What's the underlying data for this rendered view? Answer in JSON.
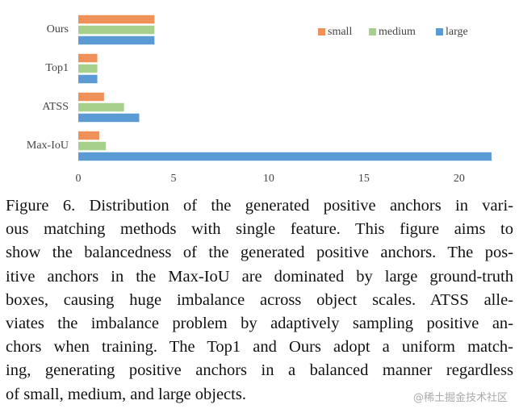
{
  "chart_data": {
    "type": "hbar",
    "categories": [
      "Ours",
      "Top1",
      "ATSS",
      "Max-IoU"
    ],
    "series": [
      {
        "name": "small",
        "color": "#f0915a",
        "values": [
          4,
          1,
          1.35,
          1.1
        ]
      },
      {
        "name": "medium",
        "color": "#a8d08d",
        "values": [
          4,
          1,
          2.4,
          1.45
        ]
      },
      {
        "name": "large",
        "color": "#5b9bd5",
        "values": [
          4,
          1,
          3.2,
          21.7
        ]
      }
    ],
    "xlim": [
      0,
      22
    ],
    "xticks": [
      0,
      5,
      10,
      15,
      20
    ],
    "legend": "upper right"
  },
  "caption": {
    "lines": [
      "Figure 6. Distribution of the generated positive anchors in vari-",
      "ous matching methods with single feature.  This figure aims to",
      "show the balancedness of the generated positive anchors. The pos-",
      "itive anchors in the Max-IoU are dominated by large ground-truth",
      "boxes, causing huge imbalance across object scales.  ATSS alle-",
      "viates the imbalance problem by adaptively sampling positive an-",
      "chors when training. The Top1 and Ours adopt a uniform match-",
      "ing, generating positive anchors in a balanced manner regardless",
      "of small, medium, and large objects."
    ]
  },
  "watermark": "@稀土掘金技术社区"
}
